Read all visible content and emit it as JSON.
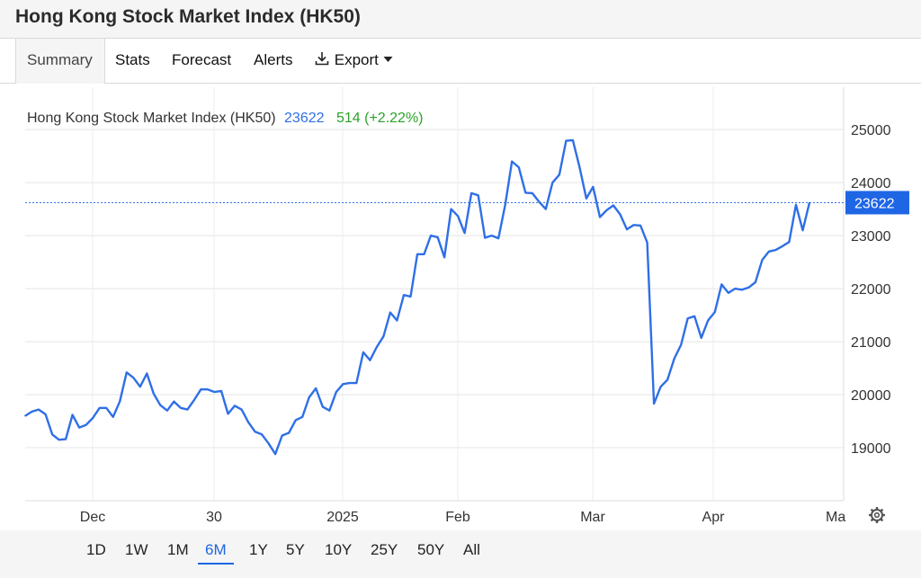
{
  "header": {
    "title": "Hong Kong Stock Market Index (HK50)"
  },
  "tabs": [
    {
      "label": "Summary",
      "active": true
    },
    {
      "label": "Stats"
    },
    {
      "label": "Forecast"
    },
    {
      "label": "Alerts"
    },
    {
      "label": "Export",
      "icon": "download-icon",
      "dropdown": true
    }
  ],
  "legend": {
    "name": "Hong Kong Stock Market Index (HK50)",
    "value": "23622",
    "change": "514 (+2.22%)",
    "value_color": "#2f6fe6",
    "change_color": "#2aa329"
  },
  "current_price_label": "23622",
  "range_buttons": [
    {
      "label": "1D"
    },
    {
      "label": "1W"
    },
    {
      "label": "1M"
    },
    {
      "label": "6M",
      "active": true
    },
    {
      "label": "1Y"
    },
    {
      "label": "5Y"
    },
    {
      "label": "10Y"
    },
    {
      "label": "25Y"
    },
    {
      "label": "50Y"
    },
    {
      "label": "All"
    }
  ],
  "chart_data": {
    "type": "line",
    "x_labels": [
      "Dec",
      "30",
      "2025",
      "Feb",
      "Mar",
      "Apr",
      "Ma"
    ],
    "y_ticks": [
      19000,
      20000,
      21000,
      22000,
      23000,
      24000,
      25000
    ],
    "ylim": [
      18000,
      25800
    ],
    "grid": true,
    "line_color": "#2f6fe6",
    "series": [
      {
        "name": "Hong Kong Stock Market Index (HK50)",
        "values": [
          19600,
          19680,
          19720,
          19630,
          19250,
          19150,
          19160,
          19620,
          19380,
          19430,
          19560,
          19750,
          19750,
          19580,
          19870,
          20420,
          20320,
          20150,
          20400,
          20020,
          19800,
          19700,
          19870,
          19750,
          19720,
          19900,
          20100,
          20100,
          20050,
          20070,
          19640,
          19790,
          19720,
          19480,
          19300,
          19250,
          19080,
          18880,
          19230,
          19280,
          19520,
          19580,
          19950,
          20120,
          19770,
          19700,
          20050,
          20200,
          20220,
          20220,
          20800,
          20650,
          20900,
          21100,
          21550,
          21400,
          21880,
          21850,
          22650,
          22650,
          23000,
          22970,
          22590,
          23500,
          23370,
          23050,
          23800,
          23760,
          22960,
          23000,
          22950,
          23580,
          24400,
          24290,
          23810,
          23800,
          23640,
          23500,
          24000,
          24150,
          24790,
          24800,
          24290,
          23700,
          23920,
          23350,
          23480,
          23570,
          23400,
          23120,
          23200,
          23190,
          22870,
          19830,
          20150,
          20280,
          20680,
          20940,
          21440,
          21480,
          21070,
          21400,
          21560,
          22080,
          21920,
          22000,
          21980,
          22020,
          22120,
          22540,
          22700,
          22730,
          22800,
          22880,
          23580,
          23100,
          23622
        ]
      }
    ]
  }
}
